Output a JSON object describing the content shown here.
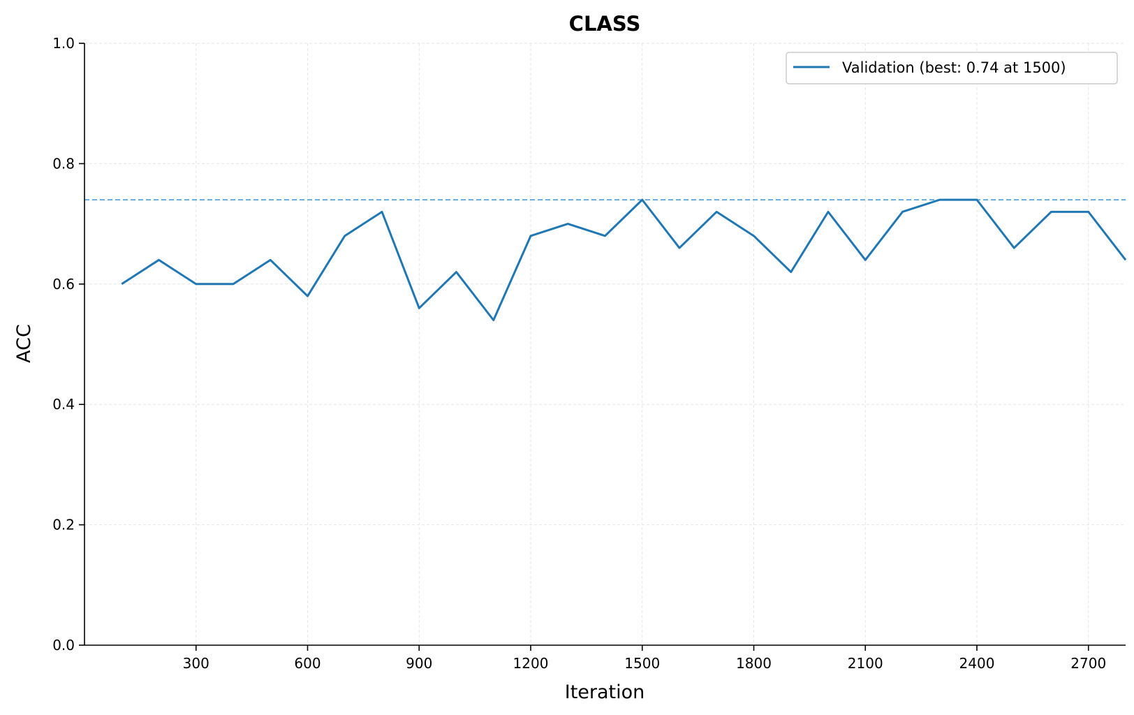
{
  "chart_data": {
    "type": "line",
    "title": "CLASS",
    "xlabel": "Iteration",
    "ylabel": "ACC",
    "xlim": [
      0,
      2800
    ],
    "ylim": [
      0,
      1.0
    ],
    "xticks": [
      300,
      600,
      900,
      1200,
      1500,
      1800,
      2100,
      2400,
      2700
    ],
    "yticks": [
      "0.0",
      "0.2",
      "0.4",
      "0.6",
      "0.8",
      "1.0"
    ],
    "grid": true,
    "legend_position": "top-right",
    "colors": {
      "series": "#1f77b4",
      "reference_line": "#3a96d6",
      "grid": "#e6e6e6"
    },
    "series": [
      {
        "name": "Validation (best: 0.74 at 1500)",
        "x": [
          100,
          200,
          300,
          400,
          500,
          600,
          700,
          800,
          900,
          1000,
          1100,
          1200,
          1300,
          1400,
          1500,
          1600,
          1700,
          1800,
          1900,
          2000,
          2100,
          2200,
          2300,
          2400,
          2500,
          2600,
          2700,
          2800
        ],
        "y": [
          0.6,
          0.64,
          0.6,
          0.6,
          0.64,
          0.58,
          0.68,
          0.72,
          0.56,
          0.62,
          0.54,
          0.68,
          0.7,
          0.68,
          0.74,
          0.66,
          0.72,
          0.68,
          0.62,
          0.72,
          0.64,
          0.72,
          0.74,
          0.74,
          0.66,
          0.72,
          0.72,
          0.64
        ]
      }
    ],
    "reference_line": {
      "y": 0.74,
      "style": "dashed"
    }
  }
}
